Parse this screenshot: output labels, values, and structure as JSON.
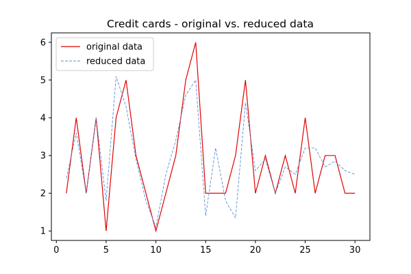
{
  "chart_data": {
    "type": "line",
    "title": "Credit cards - original vs. reduced data",
    "xlabel": "",
    "ylabel": "",
    "xlim": [
      -0.5,
      31.5
    ],
    "ylim": [
      0.75,
      6.25
    ],
    "x_ticks": [
      0,
      5,
      10,
      15,
      20,
      25,
      30
    ],
    "y_ticks": [
      1,
      2,
      3,
      4,
      5,
      6
    ],
    "grid": false,
    "legend_position": "upper-left",
    "x": [
      1,
      2,
      3,
      4,
      5,
      6,
      7,
      8,
      9,
      10,
      11,
      12,
      13,
      14,
      15,
      16,
      17,
      18,
      19,
      20,
      21,
      22,
      23,
      24,
      25,
      26,
      27,
      28,
      29,
      30
    ],
    "series": [
      {
        "name": "original data",
        "color": "#e00000",
        "style": "solid",
        "values": [
          2,
          4,
          2,
          4,
          1,
          4,
          5,
          3,
          2,
          1,
          2,
          3,
          5,
          6,
          2,
          2,
          2,
          3,
          5,
          2,
          3,
          2,
          3,
          2,
          4,
          2,
          3,
          3,
          2,
          2
        ]
      },
      {
        "name": "reduced data",
        "color": "#5b8fd6",
        "style": "dashed",
        "values": [
          2.4,
          3.6,
          2.0,
          4.0,
          1.8,
          5.1,
          4.3,
          2.9,
          1.8,
          1.1,
          2.5,
          3.4,
          4.6,
          5.0,
          1.4,
          3.2,
          1.8,
          1.35,
          4.4,
          2.6,
          2.9,
          2.0,
          2.7,
          2.5,
          3.2,
          3.2,
          2.7,
          2.85,
          2.6,
          2.5
        ]
      }
    ]
  }
}
